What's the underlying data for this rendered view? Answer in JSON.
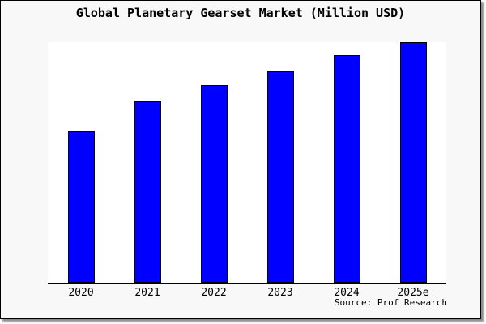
{
  "window": {
    "background_color": "#f8f8f8",
    "border_color": "#000000"
  },
  "chart_data": {
    "type": "bar",
    "title": "Global Planetary Gearset Market (Million USD)",
    "categories": [
      "2020",
      "2021",
      "2022",
      "2023",
      "2024",
      "2025e"
    ],
    "values": [
      63,
      75.5,
      82,
      88,
      94.5,
      100
    ],
    "xlabel": "",
    "ylabel": "",
    "ylim": [
      0,
      100
    ],
    "grid": false,
    "legend_position": "none",
    "y_axis_ticks_visible": false,
    "bar_color": "#0000ff",
    "bar_border_color": "#000000",
    "axis_color": "#000000",
    "plot_background": "#ffffff",
    "value_note": "No y-axis scale is rendered in the image; values are estimated relative heights with the tallest bar (2025e) = 100"
  },
  "footer": {
    "source_text": "Source: Prof Research"
  }
}
